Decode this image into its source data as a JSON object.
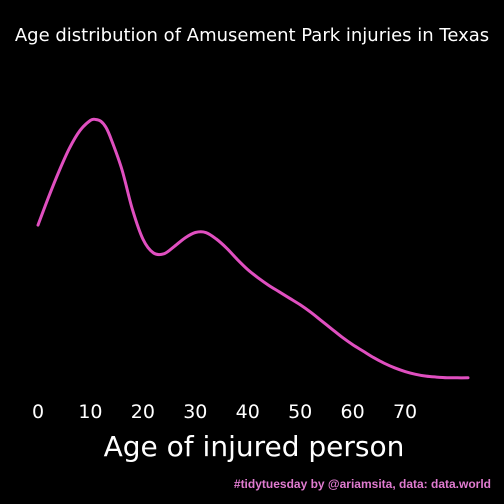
{
  "chart_data": {
    "type": "area",
    "title": "Age distribution of Amusement Park injuries in Texas",
    "xlabel": "Age of injured person",
    "ylabel": "",
    "caption": "#tidytuesday by @ariamsita, data: data.world",
    "xlim": [
      0,
      82
    ],
    "ylim": [
      0,
      0.03
    ],
    "x_ticks": [
      0,
      10,
      20,
      30,
      40,
      50,
      60,
      70
    ],
    "grid": false,
    "legend": "none",
    "series": [
      {
        "color": "#e04fc0",
        "x": [
          0,
          2,
          4,
          6,
          8,
          10,
          11,
          12,
          13,
          14,
          16,
          18,
          20,
          22,
          24,
          26,
          28,
          30,
          32,
          34,
          36,
          38,
          40,
          42,
          44,
          46,
          48,
          50,
          52,
          54,
          56,
          58,
          60,
          62,
          64,
          66,
          68,
          70,
          72,
          74,
          76,
          78,
          80,
          82
        ],
        "y": [
          0.0165,
          0.0195,
          0.0223,
          0.0248,
          0.0267,
          0.0278,
          0.0279,
          0.0277,
          0.027,
          0.0257,
          0.0225,
          0.0182,
          0.015,
          0.0135,
          0.0134,
          0.0142,
          0.0151,
          0.0157,
          0.0157,
          0.015,
          0.014,
          0.0128,
          0.0117,
          0.0108,
          0.01,
          0.0093,
          0.0086,
          0.0079,
          0.0071,
          0.0062,
          0.0053,
          0.0044,
          0.0036,
          0.0029,
          0.0022,
          0.0016,
          0.0011,
          0.0007,
          0.0004,
          0.0002,
          0.0001,
          3e-05,
          2e-05,
          2e-05
        ]
      }
    ]
  }
}
